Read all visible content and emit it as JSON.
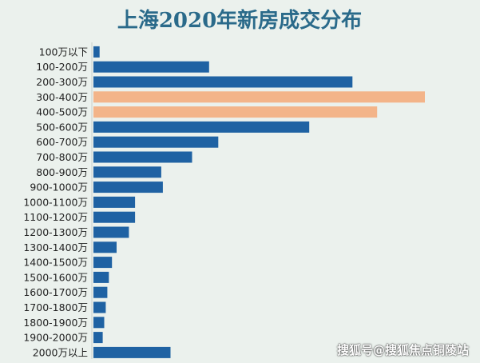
{
  "chart_data": {
    "type": "bar",
    "orientation": "horizontal",
    "title": "上海2020年新房成交分布",
    "categories": [
      "100万以下",
      "100-200万",
      "200-300万",
      "300-400万",
      "400-500万",
      "500-600万",
      "600-700万",
      "700-800万",
      "800-900万",
      "900-1000万",
      "1000-1100万",
      "1100-1200万",
      "1200-1300万",
      "1300-1400万",
      "1400-1500万",
      "1500-1600万",
      "1600-1700万",
      "1700-1800万",
      "1800-1900万",
      "1900-2000万",
      "2000万以上"
    ],
    "values": [
      4,
      75,
      168,
      215,
      184,
      140,
      81,
      64,
      44,
      45,
      27,
      27,
      23,
      15,
      12,
      10,
      9,
      8,
      7,
      6,
      50
    ],
    "highlight": [
      "300-400万",
      "400-500万"
    ],
    "colors": {
      "bar": "#1f62a3",
      "highlight": "#f3b489",
      "title": "#2a6a8a",
      "background": "#ebf1ed"
    },
    "xlim": [
      0,
      215
    ],
    "grid": false
  },
  "watermark": "搜狐号@搜狐焦点铜陵站"
}
